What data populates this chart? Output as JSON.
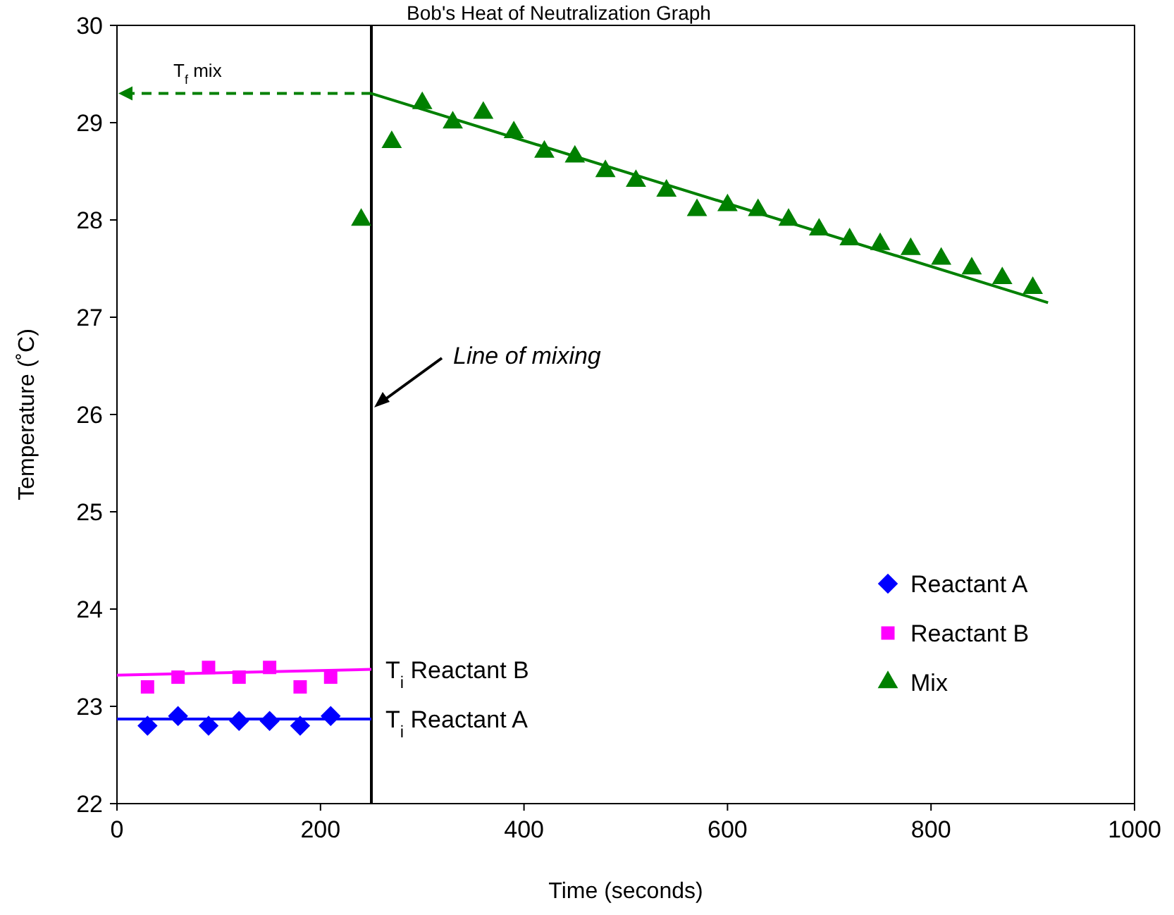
{
  "chart_data": {
    "type": "scatter",
    "title": "Bob's Heat of Neutralization Graph",
    "xlabel": "Time (seconds)",
    "ylabel": "Temperature (˚C)",
    "xlim": [
      0,
      1000
    ],
    "xticks": [
      0,
      200,
      400,
      600,
      800,
      1000
    ],
    "ylim": [
      22,
      30
    ],
    "yticks": [
      22,
      23,
      24,
      25,
      26,
      27,
      28,
      29,
      30
    ],
    "grid": false,
    "legend": "right",
    "series": [
      {
        "name": "Reactant A",
        "color": "#0000ff",
        "marker": "diamond",
        "x": [
          30,
          60,
          90,
          120,
          150,
          180,
          210
        ],
        "values": [
          22.8,
          22.9,
          22.8,
          22.85,
          22.85,
          22.8,
          22.9
        ]
      },
      {
        "name": "Reactant B",
        "color": "#ff00ff",
        "marker": "square",
        "x": [
          30,
          60,
          90,
          120,
          150,
          180,
          210
        ],
        "values": [
          23.2,
          23.3,
          23.4,
          23.3,
          23.4,
          23.2,
          23.3
        ]
      },
      {
        "name": "Mix",
        "color": "#008000",
        "marker": "triangle",
        "x": [
          240,
          270,
          300,
          330,
          360,
          390,
          420,
          450,
          480,
          510,
          540,
          570,
          600,
          630,
          660,
          690,
          720,
          750,
          780,
          810,
          840,
          870,
          900
        ],
        "values": [
          28.0,
          28.8,
          29.2,
          29.0,
          29.1,
          28.9,
          28.7,
          28.65,
          28.5,
          28.4,
          28.3,
          28.1,
          28.15,
          28.1,
          28.0,
          27.9,
          27.8,
          27.75,
          27.7,
          27.6,
          27.5,
          27.4,
          27.3
        ]
      },
      {
        "type": "line",
        "color": "#0000ff",
        "marker": "none",
        "line_style": "solid",
        "x": [
          0,
          250
        ],
        "values": [
          22.87,
          22.87
        ]
      },
      {
        "type": "line",
        "color": "#ff00ff",
        "marker": "none",
        "line_style": "solid",
        "x": [
          0,
          250
        ],
        "values": [
          23.32,
          23.38
        ]
      },
      {
        "type": "line",
        "color": "#008000",
        "marker": "none",
        "line_style": "solid",
        "x": [
          250,
          915
        ],
        "values": [
          29.3,
          27.15
        ]
      }
    ],
    "ref_lines": [
      {
        "axis": "x",
        "value": 250,
        "color": "#000000"
      }
    ],
    "annotations": [
      "Line of mixing",
      "T$_{f}$ mix",
      "T$_{i}$ Reactant B",
      "T$_{i}$ Reactant A"
    ]
  }
}
